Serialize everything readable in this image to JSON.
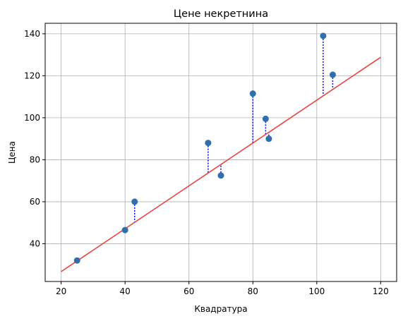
{
  "chart_data": {
    "type": "scatter",
    "title": "Цене некретнина",
    "xlabel": "Квадратура",
    "ylabel": "Цена",
    "xlim": [
      15,
      125
    ],
    "ylim": [
      22,
      145
    ],
    "xticks": [
      20,
      40,
      60,
      80,
      100,
      120
    ],
    "yticks": [
      40,
      60,
      80,
      100,
      120,
      140
    ],
    "grid": true,
    "points": [
      {
        "x": 25,
        "y": 32
      },
      {
        "x": 40,
        "y": 46.5
      },
      {
        "x": 43,
        "y": 60
      },
      {
        "x": 66,
        "y": 88
      },
      {
        "x": 70,
        "y": 72.5
      },
      {
        "x": 80,
        "y": 111.5
      },
      {
        "x": 84,
        "y": 99.5
      },
      {
        "x": 85,
        "y": 90
      },
      {
        "x": 102,
        "y": 139
      },
      {
        "x": 105,
        "y": 120.5
      }
    ],
    "regression_line": {
      "x": [
        20,
        120
      ],
      "y": [
        26.7,
        128.8
      ]
    },
    "colors": {
      "points": "#2f6fad",
      "line": "#e8453c",
      "residuals": "#0000ff",
      "grid": "#b0b0b0"
    }
  }
}
